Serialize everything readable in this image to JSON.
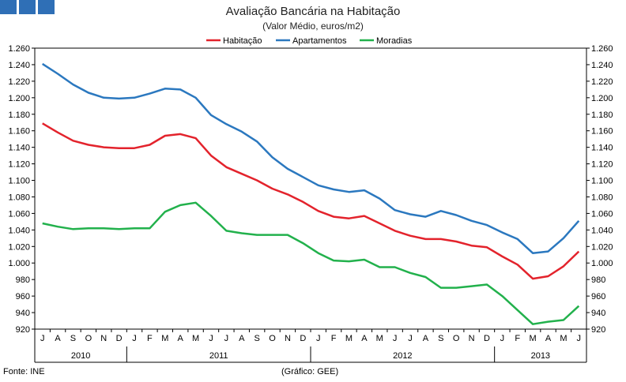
{
  "header": {
    "title": "Avaliação Bancária na Habitação",
    "subtitle": "(Valor Médio, euros/m2)"
  },
  "footer": {
    "source": "Fonte: INE",
    "credit": "(Gráfico: GEE)"
  },
  "colors": {
    "habitacao": "#e3232c",
    "apartamentos": "#2b78bf",
    "moradias": "#22b14c",
    "logo": "#2f6fb6"
  },
  "chart_data": {
    "type": "line",
    "title": "Avaliação Bancária na Habitação",
    "subtitle": "(Valor Médio, euros/m2)",
    "ylim": [
      920,
      1260
    ],
    "y_ticks": [
      "920",
      "940",
      "960",
      "980",
      "1.000",
      "1.020",
      "1.040",
      "1.060",
      "1.080",
      "1.100",
      "1.120",
      "1.140",
      "1.160",
      "1.180",
      "1.200",
      "1.220",
      "1.240",
      "1.260"
    ],
    "grid": false,
    "legend_position": "top-center",
    "categories": [
      "J",
      "A",
      "S",
      "O",
      "N",
      "D",
      "J",
      "F",
      "M",
      "A",
      "M",
      "J",
      "J",
      "A",
      "S",
      "O",
      "N",
      "D",
      "J",
      "F",
      "M",
      "A",
      "M",
      "J",
      "J",
      "A",
      "S",
      "O",
      "N",
      "D",
      "J",
      "F",
      "M",
      "A",
      "M",
      "J"
    ],
    "years": [
      {
        "label": "2010",
        "start": 0,
        "end": 6
      },
      {
        "label": "2011",
        "start": 6,
        "end": 18
      },
      {
        "label": "2012",
        "start": 18,
        "end": 30
      },
      {
        "label": "2013",
        "start": 30,
        "end": 36
      }
    ],
    "series": [
      {
        "name": "Habitação",
        "key": "habitacao",
        "values": [
          1169,
          1158,
          1148,
          1143,
          1140,
          1139,
          1139,
          1143,
          1154,
          1156,
          1151,
          1130,
          1116,
          1108,
          1100,
          1090,
          1083,
          1074,
          1063,
          1056,
          1054,
          1057,
          1048,
          1039,
          1033,
          1029,
          1029,
          1026,
          1021,
          1019,
          1008,
          998,
          981,
          984,
          996,
          1014
        ]
      },
      {
        "name": "Apartamentos",
        "key": "apartamentos",
        "values": [
          1241,
          1229,
          1216,
          1206,
          1200,
          1199,
          1200,
          1205,
          1211,
          1210,
          1200,
          1179,
          1168,
          1159,
          1147,
          1128,
          1114,
          1104,
          1094,
          1089,
          1086,
          1088,
          1078,
          1064,
          1059,
          1056,
          1063,
          1058,
          1051,
          1046,
          1037,
          1029,
          1012,
          1014,
          1030,
          1051
        ]
      },
      {
        "name": "Moradias",
        "key": "moradias",
        "values": [
          1048,
          1044,
          1041,
          1042,
          1042,
          1041,
          1042,
          1042,
          1062,
          1070,
          1073,
          1057,
          1039,
          1036,
          1034,
          1034,
          1034,
          1024,
          1012,
          1003,
          1002,
          1004,
          995,
          995,
          988,
          983,
          970,
          970,
          972,
          974,
          960,
          943,
          926,
          929,
          931,
          948
        ]
      }
    ]
  }
}
